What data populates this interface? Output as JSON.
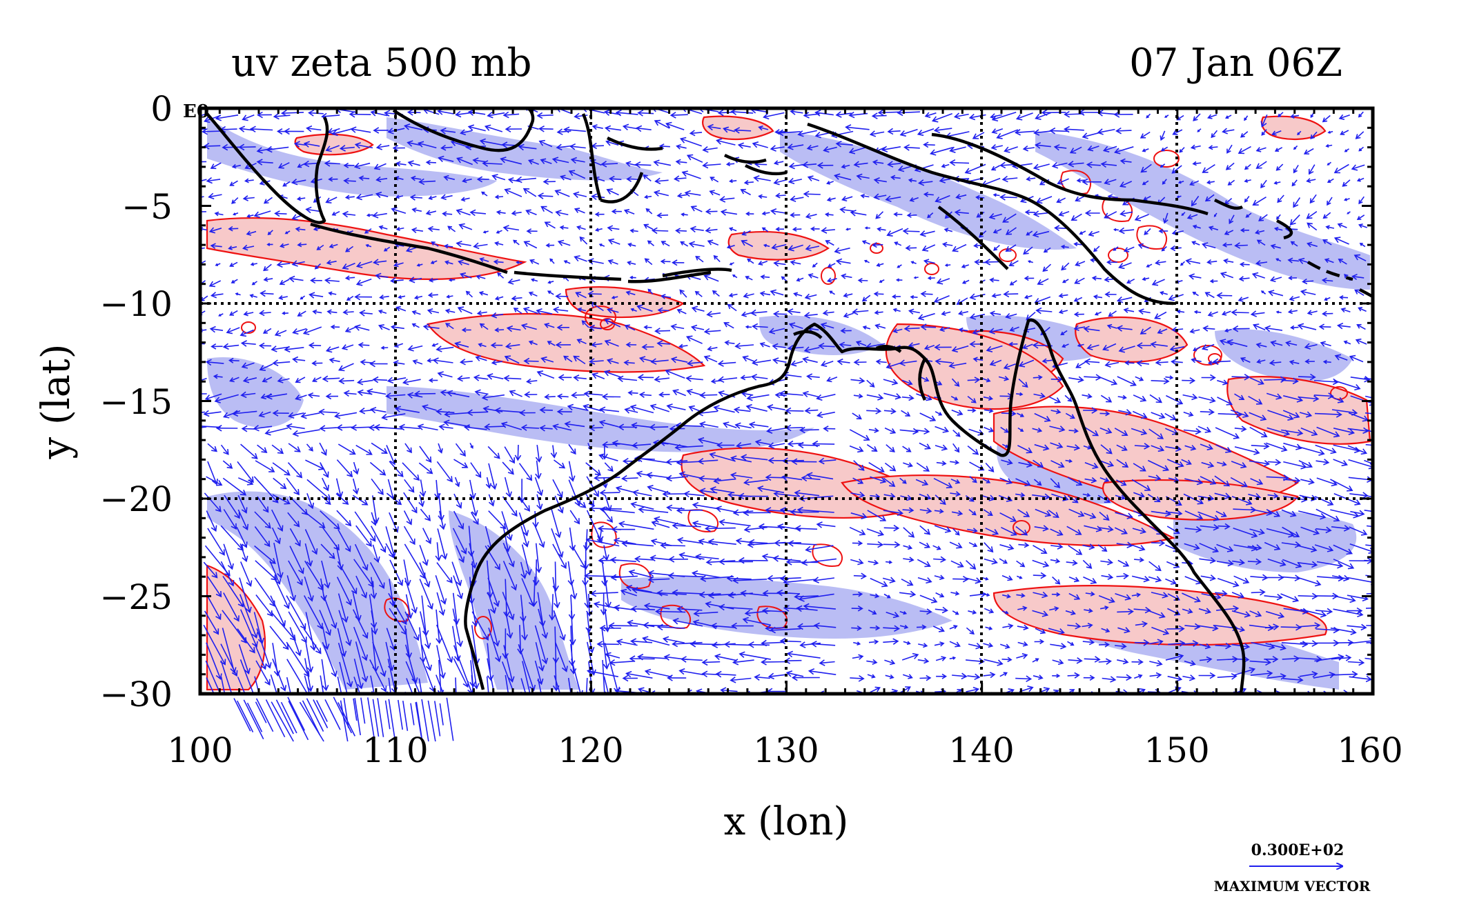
{
  "figure": {
    "title_left": "uv zeta 500 mb",
    "title_right": "07 Jan 06Z",
    "corner_label": "E0",
    "xlabel": "x (lon)",
    "ylabel": "y (lat)",
    "xticks": [
      "100",
      "110",
      "120",
      "130",
      "140",
      "150",
      "160"
    ],
    "yticks": [
      "0",
      "−5",
      "−10",
      "−15",
      "−20",
      "−25",
      "−30"
    ],
    "vector_key_value": "0.300E+02",
    "vector_key_label": "MAXIMUM VECTOR"
  },
  "map_data": {
    "type": "vector-field-with-filled-vorticity-contours",
    "lon_range": [
      100,
      160
    ],
    "lat_range": [
      -30,
      0
    ],
    "grid_lon": [
      110,
      120,
      130,
      140,
      150
    ],
    "grid_lat": [
      -10,
      -20
    ],
    "colors": {
      "positive_vorticity_fill": "#f7c9c9",
      "positive_contour": "#ee1111",
      "negative_vorticity_fill": "#aeb2f2",
      "vectors": "#1f1fee",
      "coastline": "#000000",
      "grid": "#000000"
    }
  }
}
